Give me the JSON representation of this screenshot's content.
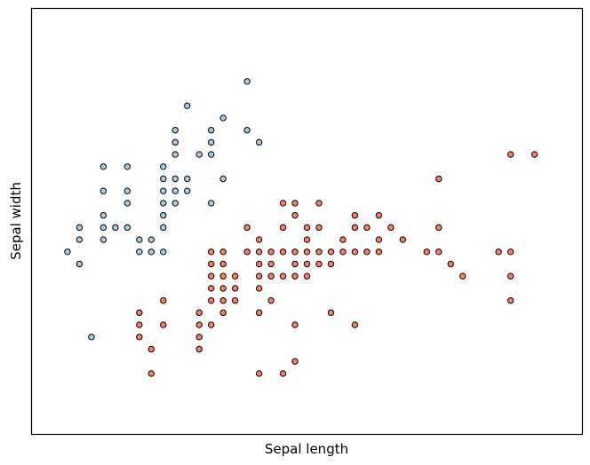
{
  "chart_data": {
    "type": "scatter",
    "title": "",
    "xlabel": "Sepal length",
    "ylabel": "Sepal width",
    "xlim": [
      3.8,
      8.4
    ],
    "ylim": [
      1.5,
      5.0
    ],
    "xticks": [],
    "yticks": [],
    "grid": false,
    "legend": "none",
    "series": [
      {
        "color": "#a6cee3",
        "points": [
          [
            4.1,
            3.0
          ],
          [
            4.2,
            2.9
          ],
          [
            4.2,
            3.1
          ],
          [
            4.2,
            3.2
          ],
          [
            4.3,
            2.3
          ],
          [
            4.4,
            3.3
          ],
          [
            4.4,
            3.1
          ],
          [
            4.4,
            3.2
          ],
          [
            4.4,
            3.7
          ],
          [
            4.4,
            3.5
          ],
          [
            4.5,
            3.2
          ],
          [
            4.6,
            3.4
          ],
          [
            4.6,
            3.2
          ],
          [
            4.6,
            3.5
          ],
          [
            4.6,
            3.7
          ],
          [
            4.7,
            3.0
          ],
          [
            4.7,
            3.1
          ],
          [
            4.8,
            3.0
          ],
          [
            4.8,
            3.1
          ],
          [
            4.9,
            3.0
          ],
          [
            4.9,
            3.2
          ],
          [
            4.9,
            3.3
          ],
          [
            4.9,
            3.4
          ],
          [
            4.9,
            3.5
          ],
          [
            4.9,
            3.6
          ],
          [
            4.9,
            3.7
          ],
          [
            5.0,
            3.4
          ],
          [
            5.0,
            3.5
          ],
          [
            5.0,
            3.6
          ],
          [
            5.0,
            3.8
          ],
          [
            5.0,
            3.9
          ],
          [
            5.0,
            4.0
          ],
          [
            5.1,
            3.5
          ],
          [
            5.1,
            3.6
          ],
          [
            5.1,
            4.2
          ],
          [
            5.2,
            3.8
          ],
          [
            5.3,
            3.4
          ],
          [
            5.3,
            3.8
          ],
          [
            5.3,
            4.0
          ],
          [
            5.3,
            3.9
          ],
          [
            5.4,
            3.6
          ],
          [
            5.4,
            4.1
          ],
          [
            5.6,
            4.0
          ],
          [
            5.6,
            4.4
          ],
          [
            5.7,
            3.9
          ]
        ]
      },
      {
        "color": "#fb8060",
        "points": [
          [
            4.7,
            2.3
          ],
          [
            4.7,
            2.4
          ],
          [
            4.7,
            2.5
          ],
          [
            4.8,
            2.0
          ],
          [
            4.8,
            2.2
          ],
          [
            4.9,
            2.4
          ],
          [
            4.9,
            2.6
          ],
          [
            5.2,
            2.2
          ],
          [
            5.2,
            2.3
          ],
          [
            5.2,
            2.4
          ],
          [
            5.2,
            2.5
          ],
          [
            5.3,
            2.4
          ],
          [
            5.3,
            2.6
          ],
          [
            5.3,
            2.7
          ],
          [
            5.3,
            2.8
          ],
          [
            5.3,
            2.9
          ],
          [
            5.3,
            3.0
          ],
          [
            5.4,
            2.5
          ],
          [
            5.4,
            2.6
          ],
          [
            5.4,
            2.7
          ],
          [
            5.4,
            2.8
          ],
          [
            5.4,
            2.9
          ],
          [
            5.4,
            3.0
          ],
          [
            5.5,
            2.6
          ],
          [
            5.5,
            2.7
          ],
          [
            5.5,
            2.8
          ],
          [
            5.6,
            3.0
          ],
          [
            5.6,
            3.2
          ],
          [
            5.7,
            2.0
          ],
          [
            5.7,
            2.5
          ],
          [
            5.7,
            2.7
          ],
          [
            5.7,
            2.8
          ],
          [
            5.7,
            2.9
          ],
          [
            5.7,
            3.0
          ],
          [
            5.7,
            3.1
          ],
          [
            5.8,
            2.6
          ],
          [
            5.8,
            2.8
          ],
          [
            5.8,
            2.9
          ],
          [
            5.8,
            3.0
          ],
          [
            5.9,
            2.0
          ],
          [
            5.9,
            2.8
          ],
          [
            5.9,
            3.0
          ],
          [
            5.9,
            3.2
          ],
          [
            5.9,
            3.4
          ],
          [
            6.0,
            2.1
          ],
          [
            6.0,
            2.4
          ],
          [
            6.0,
            2.8
          ],
          [
            6.0,
            2.9
          ],
          [
            6.0,
            3.0
          ],
          [
            6.0,
            3.3
          ],
          [
            6.0,
            3.4
          ],
          [
            6.1,
            2.8
          ],
          [
            6.1,
            2.9
          ],
          [
            6.1,
            3.0
          ],
          [
            6.1,
            3.1
          ],
          [
            6.1,
            3.2
          ],
          [
            6.2,
            2.9
          ],
          [
            6.2,
            3.0
          ],
          [
            6.2,
            3.2
          ],
          [
            6.2,
            3.4
          ],
          [
            6.3,
            2.9
          ],
          [
            6.3,
            2.5
          ],
          [
            6.3,
            3.0
          ],
          [
            6.4,
            3.0
          ],
          [
            6.4,
            3.1
          ],
          [
            6.5,
            3.0
          ],
          [
            6.5,
            2.4
          ],
          [
            6.5,
            3.2
          ],
          [
            6.5,
            3.3
          ],
          [
            6.6,
            3.0
          ],
          [
            6.6,
            3.2
          ],
          [
            6.7,
            3.1
          ],
          [
            6.7,
            3.0
          ],
          [
            6.7,
            3.3
          ],
          [
            6.8,
            3.2
          ],
          [
            6.9,
            3.1
          ],
          [
            7.1,
            3.0
          ],
          [
            7.2,
            3.0
          ],
          [
            7.2,
            3.2
          ],
          [
            7.2,
            3.6
          ],
          [
            7.3,
            2.9
          ],
          [
            7.4,
            2.8
          ],
          [
            7.7,
            3.0
          ],
          [
            7.8,
            2.6
          ],
          [
            7.8,
            2.8
          ],
          [
            7.8,
            3.0
          ],
          [
            7.8,
            3.8
          ],
          [
            8.0,
            3.8
          ]
        ]
      }
    ]
  }
}
